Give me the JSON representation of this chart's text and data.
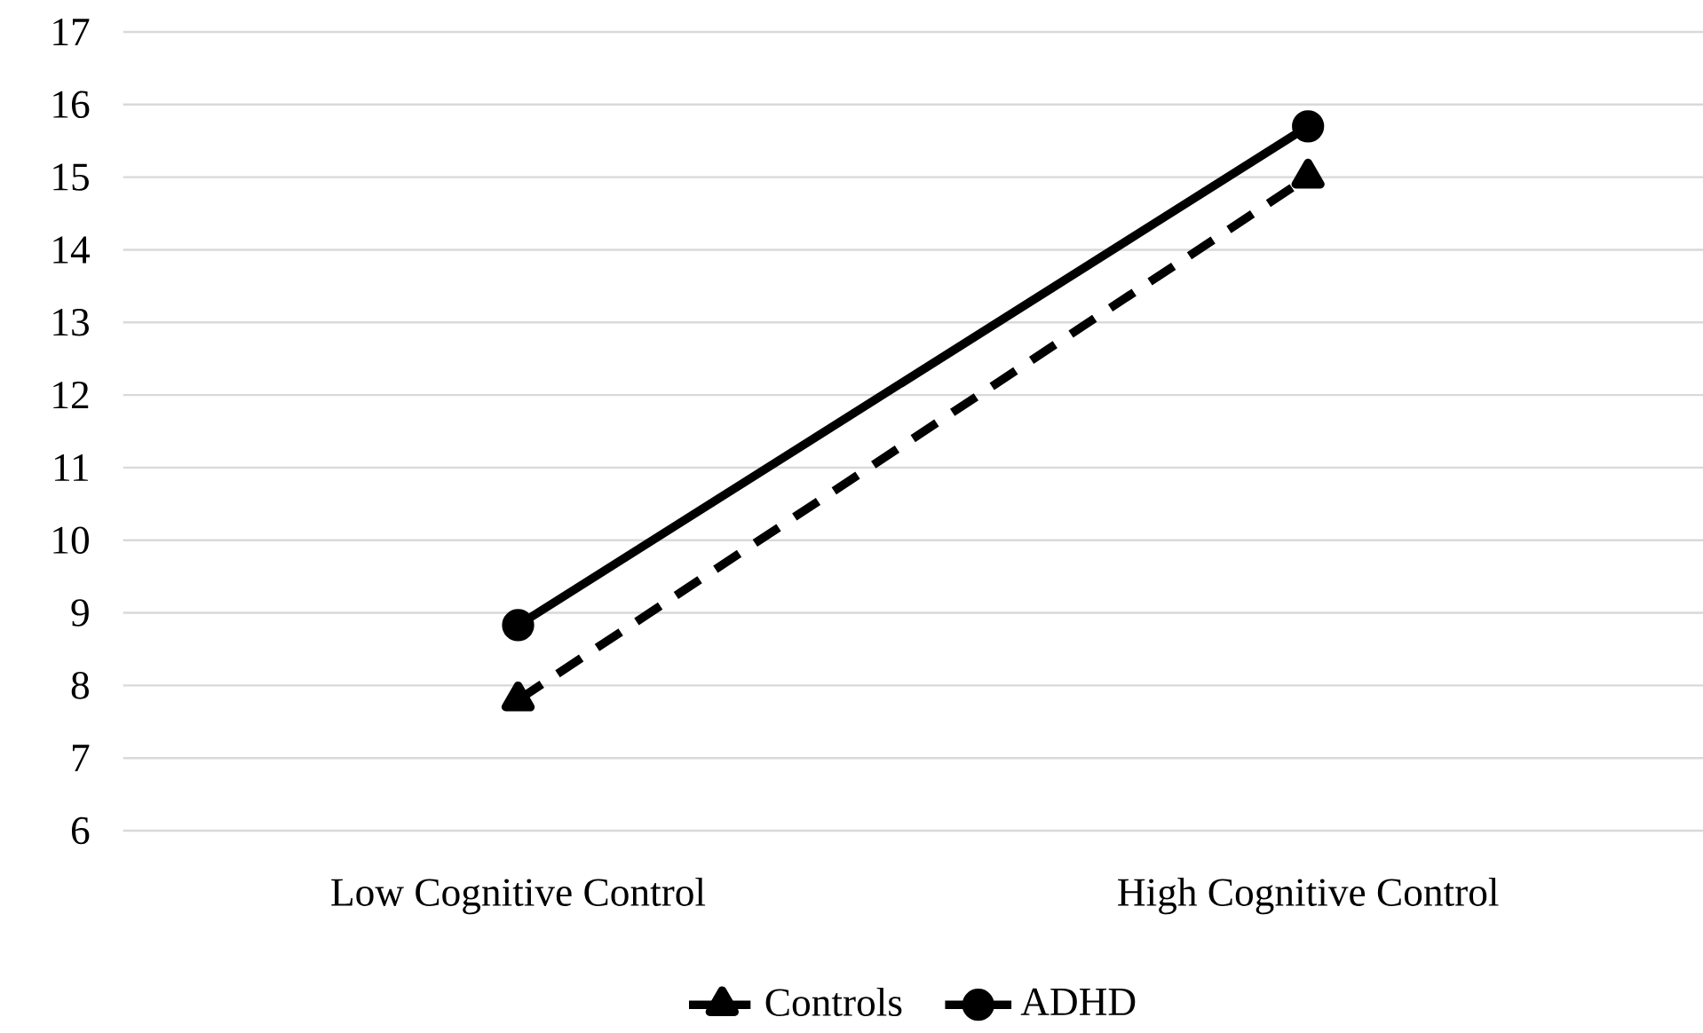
{
  "chart_data": {
    "type": "line",
    "categories": [
      "Low Cognitive Control",
      "High Cognitive Control"
    ],
    "series": [
      {
        "name": "Controls",
        "color": "#000000",
        "values": [
          7.8,
          15.0
        ],
        "marker": "triangle",
        "line_style": "dashed"
      },
      {
        "name": "ADHD",
        "color": "#000000",
        "values": [
          8.83,
          15.7
        ],
        "marker": "circle",
        "line_style": "solid"
      }
    ],
    "ylim": [
      6,
      17
    ],
    "yticks": [
      6,
      7,
      8,
      9,
      10,
      11,
      12,
      13,
      14,
      15,
      16,
      17
    ],
    "grid": "y",
    "legend": "bottom"
  }
}
